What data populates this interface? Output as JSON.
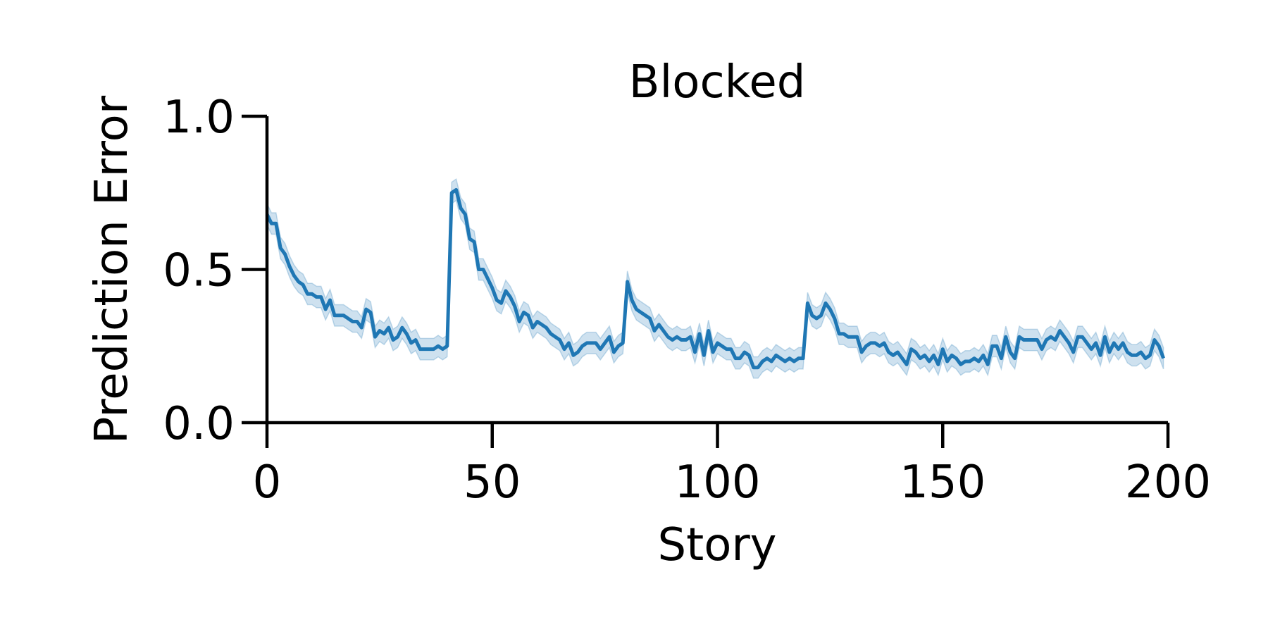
{
  "chart_data": {
    "type": "line",
    "title": "Blocked",
    "x_label": "Story",
    "y_label": "Prediction Error",
    "x": [
      0,
      1,
      2,
      3,
      4,
      5,
      6,
      7,
      8,
      9,
      10,
      11,
      12,
      13,
      14,
      15,
      16,
      17,
      18,
      19,
      20,
      21,
      22,
      23,
      24,
      25,
      26,
      27,
      28,
      29,
      30,
      31,
      32,
      33,
      34,
      35,
      36,
      37,
      38,
      39,
      40,
      41,
      42,
      43,
      44,
      45,
      46,
      47,
      48,
      49,
      50,
      51,
      52,
      53,
      54,
      55,
      56,
      57,
      58,
      59,
      60,
      61,
      62,
      63,
      64,
      65,
      66,
      67,
      68,
      69,
      70,
      71,
      72,
      73,
      74,
      75,
      76,
      77,
      78,
      79,
      80,
      81,
      82,
      83,
      84,
      85,
      86,
      87,
      88,
      89,
      90,
      91,
      92,
      93,
      94,
      95,
      96,
      97,
      98,
      99,
      100,
      101,
      102,
      103,
      104,
      105,
      106,
      107,
      108,
      109,
      110,
      111,
      112,
      113,
      114,
      115,
      116,
      117,
      118,
      119,
      120,
      121,
      122,
      123,
      124,
      125,
      126,
      127,
      128,
      129,
      130,
      131,
      132,
      133,
      134,
      135,
      136,
      137,
      138,
      139,
      140,
      141,
      142,
      143,
      144,
      145,
      146,
      147,
      148,
      149,
      150,
      151,
      152,
      153,
      154,
      155,
      156,
      157,
      158,
      159,
      160,
      161,
      162,
      163,
      164,
      165,
      166,
      167,
      168,
      169,
      170,
      171,
      172,
      173,
      174,
      175,
      176,
      177,
      178,
      179,
      180,
      181,
      182,
      183,
      184,
      185,
      186,
      187,
      188,
      189,
      190,
      191,
      192,
      193,
      194,
      195,
      196,
      197,
      198,
      199
    ],
    "series": [
      {
        "color": "#1f77b4",
        "ci": 0.035,
        "values": [
          0.68,
          0.65,
          0.65,
          0.57,
          0.55,
          0.51,
          0.48,
          0.46,
          0.45,
          0.42,
          0.42,
          0.41,
          0.41,
          0.37,
          0.4,
          0.35,
          0.35,
          0.35,
          0.34,
          0.33,
          0.33,
          0.31,
          0.37,
          0.36,
          0.28,
          0.3,
          0.29,
          0.31,
          0.27,
          0.28,
          0.31,
          0.29,
          0.26,
          0.27,
          0.24,
          0.24,
          0.24,
          0.24,
          0.25,
          0.24,
          0.25,
          0.75,
          0.76,
          0.7,
          0.68,
          0.6,
          0.59,
          0.5,
          0.5,
          0.47,
          0.44,
          0.4,
          0.39,
          0.43,
          0.41,
          0.38,
          0.33,
          0.36,
          0.35,
          0.31,
          0.33,
          0.32,
          0.31,
          0.29,
          0.28,
          0.27,
          0.24,
          0.26,
          0.22,
          0.23,
          0.25,
          0.26,
          0.26,
          0.26,
          0.24,
          0.26,
          0.28,
          0.23,
          0.25,
          0.26,
          0.46,
          0.4,
          0.37,
          0.36,
          0.35,
          0.34,
          0.3,
          0.32,
          0.3,
          0.28,
          0.27,
          0.28,
          0.27,
          0.27,
          0.28,
          0.23,
          0.29,
          0.22,
          0.3,
          0.23,
          0.26,
          0.25,
          0.24,
          0.24,
          0.21,
          0.21,
          0.23,
          0.22,
          0.18,
          0.18,
          0.2,
          0.21,
          0.2,
          0.22,
          0.21,
          0.2,
          0.21,
          0.2,
          0.21,
          0.21,
          0.39,
          0.35,
          0.34,
          0.35,
          0.39,
          0.37,
          0.34,
          0.29,
          0.29,
          0.28,
          0.28,
          0.28,
          0.23,
          0.25,
          0.26,
          0.26,
          0.25,
          0.26,
          0.23,
          0.22,
          0.23,
          0.21,
          0.19,
          0.24,
          0.23,
          0.21,
          0.22,
          0.2,
          0.22,
          0.19,
          0.24,
          0.2,
          0.22,
          0.21,
          0.19,
          0.2,
          0.2,
          0.21,
          0.2,
          0.22,
          0.19,
          0.25,
          0.25,
          0.21,
          0.28,
          0.23,
          0.21,
          0.28,
          0.27,
          0.27,
          0.27,
          0.27,
          0.24,
          0.27,
          0.28,
          0.27,
          0.3,
          0.28,
          0.26,
          0.23,
          0.28,
          0.28,
          0.26,
          0.24,
          0.26,
          0.22,
          0.28,
          0.23,
          0.26,
          0.24,
          0.26,
          0.23,
          0.22,
          0.22,
          0.23,
          0.21,
          0.22,
          0.27,
          0.25,
          0.21
        ]
      }
    ],
    "xlim": [
      0,
      200
    ],
    "xticks": [
      0,
      50,
      100,
      150,
      200
    ],
    "ylim": [
      0,
      1
    ],
    "yticks": [
      {
        "value": 0,
        "label": "0.0"
      },
      {
        "value": 0.5,
        "label": "0.5"
      },
      {
        "value": 1,
        "label": "1.0"
      }
    ],
    "grid": false
  }
}
